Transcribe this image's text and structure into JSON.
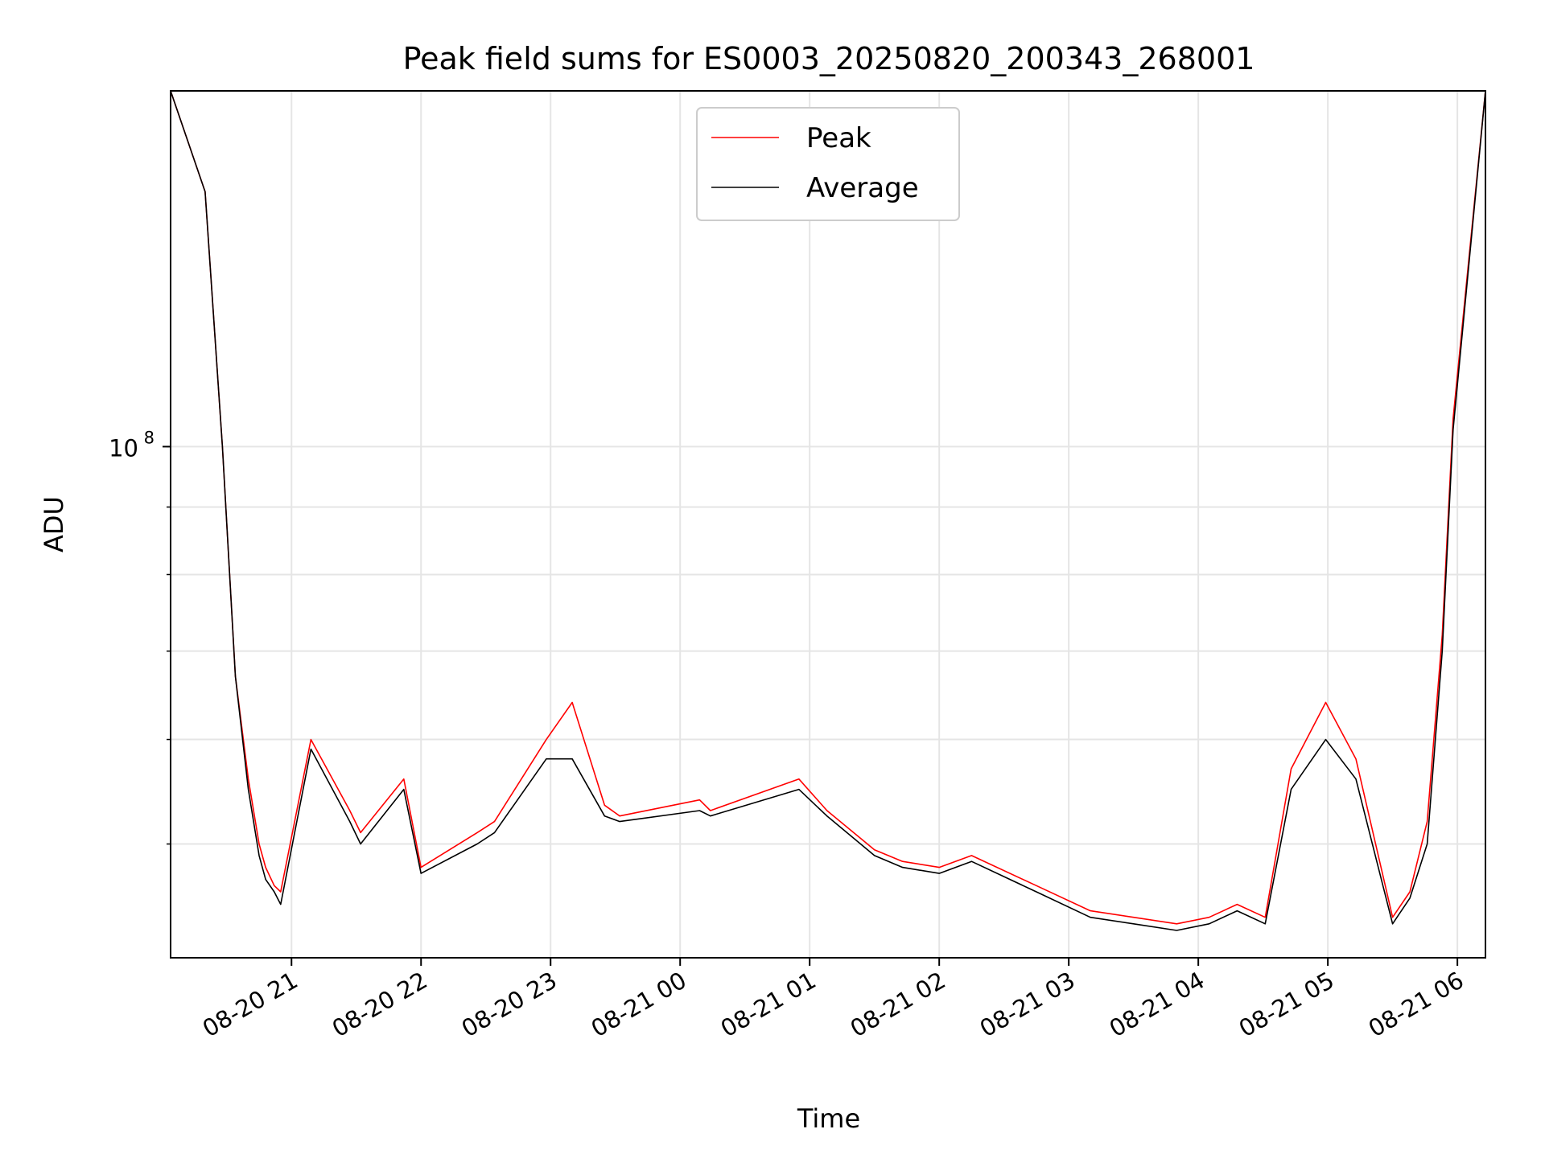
{
  "chart_data": {
    "type": "line",
    "title": "Peak field sums for ES0003_20250820_200343_268001",
    "xlabel": "Time",
    "ylabel": "ADU",
    "yscale": "log",
    "grid": true,
    "legend_position": "upper center",
    "xlim": [
      "2025-08-20 20:04",
      "2025-08-21 06:13"
    ],
    "ylim": [
      41000000,
      186000000
    ],
    "x_ticks": [
      "08-20 21",
      "08-20 22",
      "08-20 23",
      "08-21 00",
      "08-21 01",
      "08-21 02",
      "08-21 03",
      "08-21 04",
      "08-21 05",
      "08-21 06"
    ],
    "y_ticks": [
      {
        "label_base": "10",
        "label_exp": "8",
        "value": 100000000
      }
    ],
    "series": [
      {
        "name": "Peak",
        "color": "#ff0000",
        "x": [
          "2025-08-20 20:04",
          "2025-08-20 20:20",
          "2025-08-20 20:28",
          "2025-08-20 20:34",
          "2025-08-20 20:40",
          "2025-08-20 20:45",
          "2025-08-20 20:48",
          "2025-08-20 20:52",
          "2025-08-20 20:55",
          "2025-08-20 21:09",
          "2025-08-20 21:27",
          "2025-08-20 21:32",
          "2025-08-20 21:52",
          "2025-08-20 22:00",
          "2025-08-20 22:26",
          "2025-08-20 22:34",
          "2025-08-20 22:58",
          "2025-08-20 23:10",
          "2025-08-20 23:25",
          "2025-08-20 23:32",
          "2025-08-21 00:09",
          "2025-08-21 00:14",
          "2025-08-21 00:55",
          "2025-08-21 01:08",
          "2025-08-21 01:30",
          "2025-08-21 01:43",
          "2025-08-21 02:00",
          "2025-08-21 02:15",
          "2025-08-21 02:45",
          "2025-08-21 03:10",
          "2025-08-21 03:30",
          "2025-08-21 03:50",
          "2025-08-21 04:05",
          "2025-08-21 04:18",
          "2025-08-21 04:31",
          "2025-08-21 04:43",
          "2025-08-21 04:59",
          "2025-08-21 05:13",
          "2025-08-21 05:30",
          "2025-08-21 05:38",
          "2025-08-21 05:46",
          "2025-08-21 05:53",
          "2025-08-21 05:58",
          "2025-08-21 06:13"
        ],
        "y": [
          186000000,
          156000000,
          100000000,
          67000000,
          56000000,
          50000000,
          48000000,
          46500000,
          46000000,
          60000000,
          53000000,
          51000000,
          56000000,
          48000000,
          51000000,
          52000000,
          60000000,
          64000000,
          53500000,
          52500000,
          54000000,
          53000000,
          56000000,
          53000000,
          49500000,
          48500000,
          48000000,
          49000000,
          46500000,
          44500000,
          44000000,
          43500000,
          44000000,
          45000000,
          44000000,
          57000000,
          64000000,
          58000000,
          44000000,
          46000000,
          52000000,
          72000000,
          105000000,
          186000000
        ]
      },
      {
        "name": "Average",
        "color": "#000000",
        "x": [
          "2025-08-20 20:04",
          "2025-08-20 20:20",
          "2025-08-20 20:28",
          "2025-08-20 20:34",
          "2025-08-20 20:40",
          "2025-08-20 20:45",
          "2025-08-20 20:48",
          "2025-08-20 20:52",
          "2025-08-20 20:55",
          "2025-08-20 21:09",
          "2025-08-20 21:27",
          "2025-08-20 21:32",
          "2025-08-20 21:52",
          "2025-08-20 22:00",
          "2025-08-20 22:26",
          "2025-08-20 22:34",
          "2025-08-20 22:58",
          "2025-08-20 23:10",
          "2025-08-20 23:25",
          "2025-08-20 23:32",
          "2025-08-21 00:09",
          "2025-08-21 00:14",
          "2025-08-21 00:55",
          "2025-08-21 01:08",
          "2025-08-21 01:30",
          "2025-08-21 01:43",
          "2025-08-21 02:00",
          "2025-08-21 02:15",
          "2025-08-21 02:45",
          "2025-08-21 03:10",
          "2025-08-21 03:30",
          "2025-08-21 03:50",
          "2025-08-21 04:05",
          "2025-08-21 04:18",
          "2025-08-21 04:31",
          "2025-08-21 04:43",
          "2025-08-21 04:59",
          "2025-08-21 05:13",
          "2025-08-21 05:30",
          "2025-08-21 05:38",
          "2025-08-21 05:46",
          "2025-08-21 05:53",
          "2025-08-21 05:58",
          "2025-08-21 06:13"
        ],
        "y": [
          186000000,
          156000000,
          100000000,
          67000000,
          55000000,
          49000000,
          47000000,
          46000000,
          45000000,
          59000000,
          52000000,
          50000000,
          55000000,
          47500000,
          50000000,
          51000000,
          58000000,
          58000000,
          52500000,
          52000000,
          53000000,
          52500000,
          55000000,
          52500000,
          49000000,
          48000000,
          47500000,
          48500000,
          46000000,
          44000000,
          43500000,
          43000000,
          43500000,
          44500000,
          43500000,
          55000000,
          60000000,
          56000000,
          43500000,
          45500000,
          50000000,
          70000000,
          103000000,
          186000000
        ]
      }
    ]
  }
}
